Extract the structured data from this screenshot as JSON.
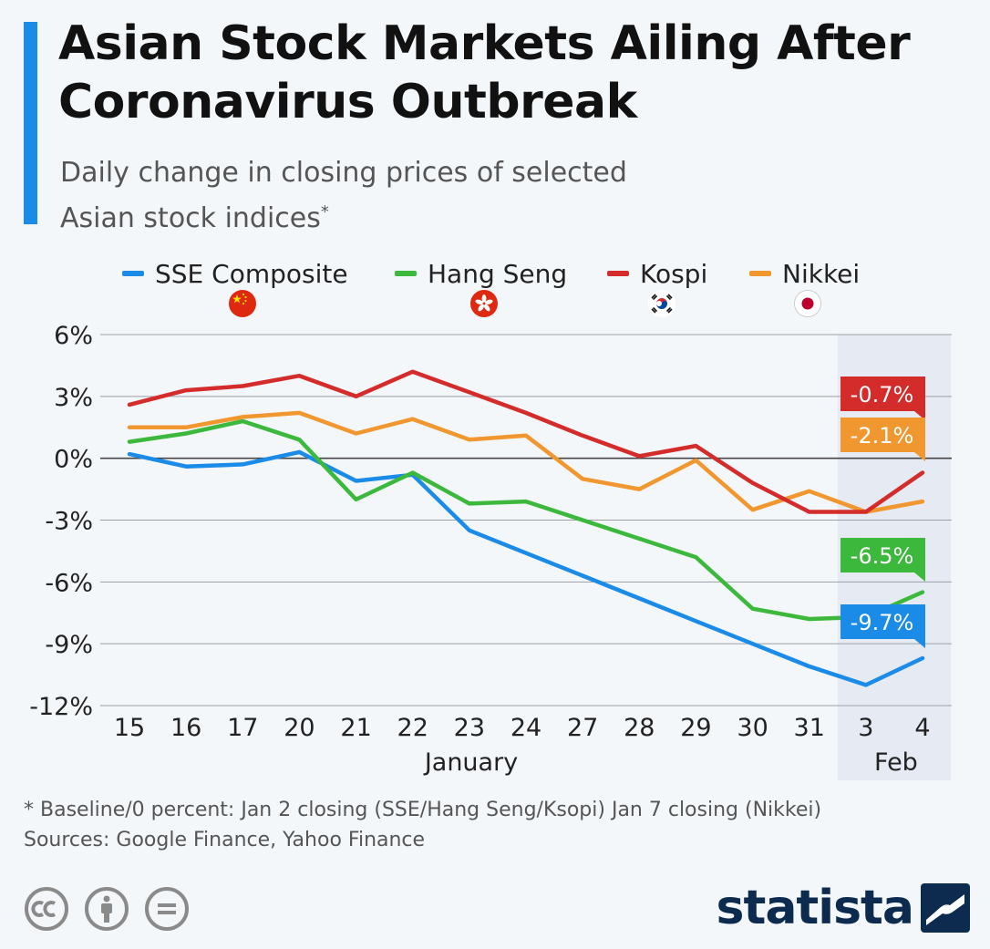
{
  "header": {
    "title": "Asian Stock Markets Ailing After Coronavirus Outbreak",
    "subtitle": "Daily change in closing prices of selected Asian stock indices",
    "subtitle_mark": "*"
  },
  "legend": {
    "items": [
      {
        "label": "SSE Composite",
        "color": "#1b8be8",
        "flag": "china-flag-icon"
      },
      {
        "label": "Hang Seng",
        "color": "#3cb93c",
        "flag": "hong-kong-flag-icon"
      },
      {
        "label": "Kospi",
        "color": "#d42b2b",
        "flag": "south-korea-flag-icon"
      },
      {
        "label": "Nikkei",
        "color": "#f0972f",
        "flag": "japan-flag-icon"
      }
    ]
  },
  "chart_data": {
    "type": "line",
    "x": [
      "15",
      "16",
      "17",
      "20",
      "21",
      "22",
      "23",
      "24",
      "27",
      "28",
      "29",
      "30",
      "31",
      "3",
      "4"
    ],
    "x_groups": [
      {
        "label": "January",
        "from": 0,
        "to": 12
      },
      {
        "label": "Feb",
        "from": 13,
        "to": 14
      }
    ],
    "ylim": [
      -12,
      6
    ],
    "yticks": [
      6,
      3,
      0,
      -3,
      -6,
      -9,
      -12
    ],
    "ytick_labels": [
      "6%",
      "3%",
      "0%",
      "-3%",
      "-6%",
      "-9%",
      "-12%"
    ],
    "grid": true,
    "highlight_range": [
      13,
      14
    ],
    "series": [
      {
        "name": "SSE Composite",
        "color": "#1b8be8",
        "values": [
          0.2,
          -0.4,
          -0.3,
          0.3,
          -1.1,
          -0.8,
          -3.5,
          -4.6,
          -5.7,
          -6.8,
          -7.9,
          -9.0,
          -10.1,
          -11.0,
          -9.7
        ],
        "end_label": "-9.7%"
      },
      {
        "name": "Hang Seng",
        "color": "#3cb93c",
        "values": [
          0.8,
          1.2,
          1.8,
          0.9,
          -2.0,
          -0.7,
          -2.2,
          -2.1,
          -3.0,
          -3.9,
          -4.8,
          -7.3,
          -7.8,
          -7.7,
          -6.5
        ],
        "end_label": "-6.5%"
      },
      {
        "name": "Kospi",
        "color": "#d42b2b",
        "values": [
          2.6,
          3.3,
          3.5,
          4.0,
          3.0,
          4.2,
          3.2,
          2.2,
          1.1,
          0.1,
          0.6,
          -1.2,
          -2.6,
          -2.6,
          -0.7
        ],
        "end_label": "-0.7%"
      },
      {
        "name": "Nikkei",
        "color": "#f0972f",
        "values": [
          1.5,
          1.5,
          2.0,
          2.2,
          1.2,
          1.9,
          0.9,
          1.1,
          -1.0,
          -1.5,
          -0.1,
          -2.5,
          -1.6,
          -2.6,
          -2.1
        ],
        "end_label": "-2.1%"
      }
    ]
  },
  "footer": {
    "note": "* Baseline/0 percent: Jan 2 closing (SSE/Hang Seng/Ksopi) Jan 7 closing (Nikkei)",
    "sources": "Sources: Google Finance, Yahoo Finance",
    "license_icons": [
      "cc-icon",
      "attribution-icon",
      "no-derivatives-icon"
    ],
    "logo": "statista"
  }
}
